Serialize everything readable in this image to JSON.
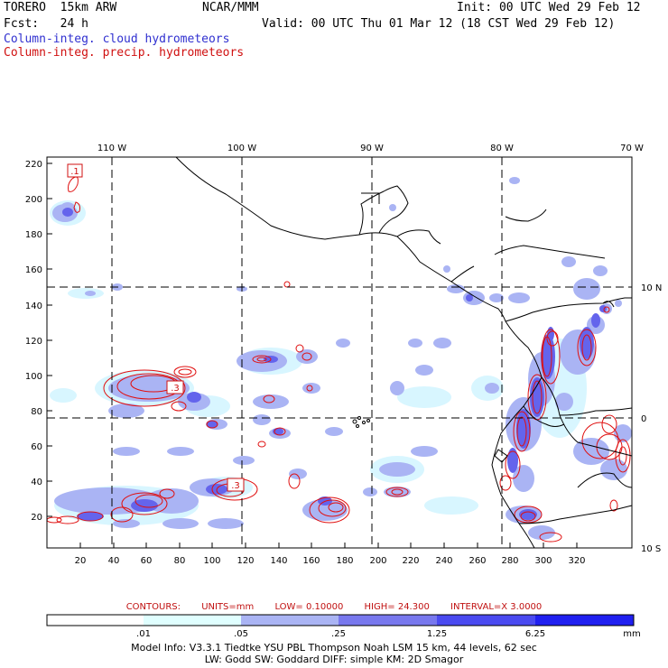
{
  "header": {
    "model": "TORERO  15km ARW",
    "center": "NCAR/MMM",
    "init": "Init: 00 UTC Wed 29 Feb 12",
    "fcst": "Fcst:   24 h",
    "valid": "Valid: 00 UTC Thu 01 Mar 12 (18 CST Wed 29 Feb 12)",
    "line_blue": "Column-integ. cloud hydrometeors",
    "line_red": "Column-integ. precip. hydrometeors"
  },
  "map": {
    "lon_labels": [
      "110 W",
      "100 W",
      "90 W",
      "80 W",
      "70 W"
    ],
    "lat_labels": [
      "10 N",
      "0",
      "10 S"
    ],
    "y_ticks": [
      "220",
      "200",
      "180",
      "160",
      "140",
      "120",
      "100",
      "80",
      "60",
      "40",
      "20"
    ],
    "x_ticks": [
      "20",
      "40",
      "60",
      "80",
      "100",
      "120",
      "140",
      "160",
      "180",
      "200",
      "220",
      "240",
      "260",
      "280",
      "300",
      "320"
    ],
    "box_labels": [
      ".1",
      ".3",
      ".3"
    ]
  },
  "contour_info": {
    "label": "CONTOURS:",
    "units": "UNITS=mm",
    "low": "LOW= 0.10000",
    "high": "HIGH=  24.300",
    "interval": "INTERVAL=X  3.0000"
  },
  "colorbar": {
    "labels": [
      ".01",
      ".05",
      ".25",
      "1.25",
      "6.25"
    ],
    "unit": "mm",
    "colors": [
      "#ffffff",
      "#e0ffff",
      "#aab4f4",
      "#7878ee",
      "#4a4af0",
      "#2020f0"
    ]
  },
  "footer": {
    "line1": "Model Info: V3.3.1    Tiedtke YSU PBL  Thompson    Noah LSM  15 km,   44 levels,   62 sec",
    "line2": "LW: Godd SW: Goddard DIFF: simple KM: 2D Smagor"
  }
}
